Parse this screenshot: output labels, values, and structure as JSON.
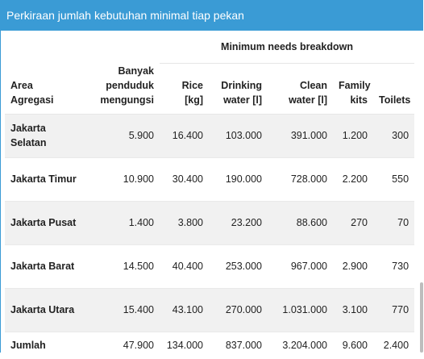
{
  "title": "Perkiraan jumlah kebutuhan minimal tiap pekan",
  "table": {
    "group_header": "Minimum needs breakdown",
    "columns": {
      "area": "Area Agregasi",
      "displaced": "Banyak penduduk mengungsi",
      "rice": "Rice [kg]",
      "water": "Drinking water [l]",
      "clean": "Clean water [l]",
      "kits": "Family kits",
      "toilets": "Toilets"
    },
    "rows": [
      {
        "area": "Jakarta Selatan",
        "displaced": "5.900",
        "rice": "16.400",
        "water": "103.000",
        "clean": "391.000",
        "kits": "1.200",
        "toilets": "300"
      },
      {
        "area": "Jakarta Timur",
        "displaced": "10.900",
        "rice": "30.400",
        "water": "190.000",
        "clean": "728.000",
        "kits": "2.200",
        "toilets": "550"
      },
      {
        "area": "Jakarta Pusat",
        "displaced": "1.400",
        "rice": "3.800",
        "water": "23.200",
        "clean": "88.600",
        "kits": "270",
        "toilets": "70"
      },
      {
        "area": "Jakarta Barat",
        "displaced": "14.500",
        "rice": "40.400",
        "water": "253.000",
        "clean": "967.000",
        "kits": "2.900",
        "toilets": "730"
      },
      {
        "area": "Jakarta Utara",
        "displaced": "15.400",
        "rice": "43.100",
        "water": "270.000",
        "clean": "1.031.000",
        "kits": "3.100",
        "toilets": "770"
      }
    ],
    "total": {
      "area": "Jumlah",
      "displaced": "47.900",
      "rice": "134.000",
      "water": "837.000",
      "clean": "3.204.000",
      "kits": "9.600",
      "toilets": "2.400"
    }
  },
  "colors": {
    "header_bg": "#3a9bd5",
    "row_shade": "#f1f1f1"
  }
}
